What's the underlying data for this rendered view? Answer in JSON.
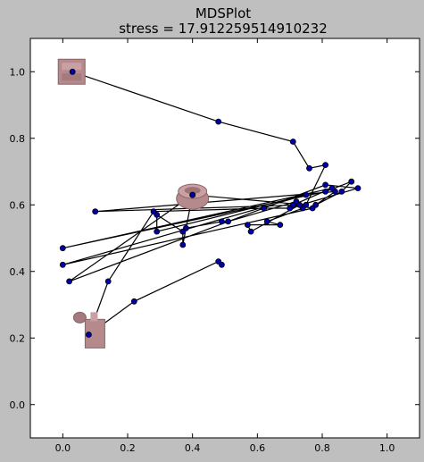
{
  "chart_data": {
    "type": "scatter",
    "title": "MDSPlot",
    "subtitle": "stress = 17.912259514910232",
    "xlim": [
      -0.1,
      1.1
    ],
    "ylim": [
      -0.1,
      1.1
    ],
    "xticks": [
      "0.0",
      "0.2",
      "0.4",
      "0.6",
      "0.8",
      "1.0"
    ],
    "yticks": [
      "0.0",
      "0.2",
      "0.4",
      "0.6",
      "0.8",
      "1.0"
    ],
    "grid": false,
    "point_color": "#0000aa",
    "line_color": "#000000",
    "background": "#ffffff",
    "path": [
      [
        0.03,
        1.0
      ],
      [
        0.48,
        0.85
      ],
      [
        0.71,
        0.79
      ],
      [
        0.76,
        0.71
      ],
      [
        0.81,
        0.72
      ],
      [
        0.75,
        0.6
      ],
      [
        0.4,
        0.63
      ],
      [
        0.38,
        0.53
      ],
      [
        0.49,
        0.55
      ],
      [
        0.51,
        0.55
      ],
      [
        0.72,
        0.61
      ],
      [
        0.74,
        0.59
      ],
      [
        0.63,
        0.55
      ],
      [
        0.67,
        0.54
      ],
      [
        0.57,
        0.54
      ],
      [
        0.58,
        0.52
      ],
      [
        0.73,
        0.6
      ],
      [
        0.1,
        0.58
      ],
      [
        0.84,
        0.64
      ],
      [
        0.78,
        0.6
      ],
      [
        0.86,
        0.64
      ],
      [
        0.89,
        0.67
      ],
      [
        0.81,
        0.64
      ],
      [
        0.0,
        0.47
      ],
      [
        0.83,
        0.65
      ],
      [
        0.71,
        0.6
      ],
      [
        0.77,
        0.59
      ],
      [
        0.0,
        0.42
      ],
      [
        0.75,
        0.63
      ],
      [
        0.29,
        0.52
      ],
      [
        0.29,
        0.57
      ],
      [
        0.37,
        0.52
      ],
      [
        0.37,
        0.48
      ],
      [
        0.4,
        0.63
      ],
      [
        0.02,
        0.37
      ],
      [
        0.81,
        0.66
      ],
      [
        0.91,
        0.65
      ],
      [
        0.7,
        0.59
      ],
      [
        0.62,
        0.59
      ],
      [
        0.28,
        0.58
      ],
      [
        0.14,
        0.37
      ],
      [
        0.08,
        0.21
      ],
      [
        0.22,
        0.31
      ],
      [
        0.48,
        0.43
      ],
      [
        0.49,
        0.42
      ]
    ],
    "thumbnails": [
      {
        "x": 0.03,
        "y": 1.0,
        "shape": "box"
      },
      {
        "x": 0.4,
        "y": 0.63,
        "shape": "bowl"
      },
      {
        "x": 0.08,
        "y": 0.24,
        "shape": "figure"
      }
    ]
  }
}
